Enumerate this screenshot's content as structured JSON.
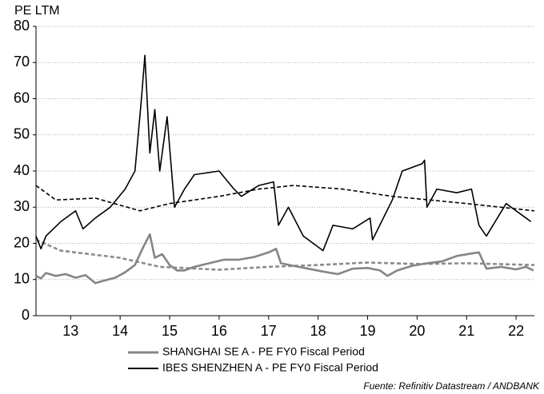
{
  "chart_data": {
    "type": "line",
    "y_label": "PE LTM",
    "source": "Fuente: Refinitiv Datastream / ANDBANK",
    "xlim": [
      2012.8,
      2022.87
    ],
    "xticks": [
      {
        "value": 2013.5,
        "label": "13"
      },
      {
        "value": 2014.5,
        "label": "14"
      },
      {
        "value": 2015.5,
        "label": "15"
      },
      {
        "value": 2016.5,
        "label": "16"
      },
      {
        "value": 2017.5,
        "label": "17"
      },
      {
        "value": 2018.5,
        "label": "18"
      },
      {
        "value": 2019.5,
        "label": "19"
      },
      {
        "value": 2020.5,
        "label": "20"
      },
      {
        "value": 2021.5,
        "label": "21"
      },
      {
        "value": 2022.5,
        "label": "22"
      }
    ],
    "ylim": [
      0,
      80
    ],
    "yticks": [
      0,
      10,
      20,
      30,
      40,
      50,
      60,
      70,
      80
    ],
    "grid": true,
    "series": [
      {
        "name": "SHANGHAI SE A - PE FY0 Fiscal Period",
        "color": "#858585",
        "dash": false,
        "x": [
          2012.8,
          2012.9,
          2013.0,
          2013.2,
          2013.4,
          2013.6,
          2013.8,
          2014.0,
          2014.2,
          2014.4,
          2014.6,
          2014.8,
          2014.95,
          2015.1,
          2015.2,
          2015.35,
          2015.5,
          2015.65,
          2015.8,
          2016.0,
          2016.3,
          2016.6,
          2016.9,
          2017.2,
          2017.5,
          2017.65,
          2017.75,
          2018.0,
          2018.3,
          2018.6,
          2018.9,
          2019.2,
          2019.5,
          2019.75,
          2019.9,
          2020.1,
          2020.4,
          2020.7,
          2021.0,
          2021.3,
          2021.6,
          2021.75,
          2021.9,
          2022.2,
          2022.5,
          2022.7,
          2022.85
        ],
        "values": [
          11,
          10.3,
          11.8,
          11,
          11.5,
          10.5,
          11.2,
          9,
          9.8,
          10.5,
          12,
          14,
          18.5,
          22.5,
          16,
          17,
          14,
          12.5,
          12.5,
          13.5,
          14.5,
          15.5,
          15.5,
          16.2,
          17.5,
          18.5,
          14.5,
          13.8,
          13,
          12.2,
          11.5,
          13,
          13.2,
          12.5,
          11,
          12.5,
          13.8,
          14.5,
          15,
          16.5,
          17.2,
          17.5,
          13,
          13.5,
          12.8,
          13.5,
          12.5
        ]
      },
      {
        "name": "IBES SHENZHEN A - PE FY0 Fiscal Period",
        "color": "#000000",
        "dash": false,
        "x": [
          2012.8,
          2012.9,
          2013.0,
          2013.3,
          2013.6,
          2013.75,
          2014.0,
          2014.3,
          2014.6,
          2014.8,
          2014.93,
          2015.0,
          2015.1,
          2015.2,
          2015.3,
          2015.45,
          2015.6,
          2015.8,
          2016.0,
          2016.5,
          2016.8,
          2016.95,
          2017.3,
          2017.6,
          2017.7,
          2017.9,
          2018.2,
          2018.6,
          2018.8,
          2019.2,
          2019.55,
          2019.6,
          2020.0,
          2020.2,
          2020.6,
          2020.65,
          2020.7,
          2020.9,
          2021.3,
          2021.6,
          2021.75,
          2021.9,
          2022.3,
          2022.6,
          2022.8
        ],
        "values": [
          22,
          18.5,
          22,
          26,
          29,
          24,
          27,
          30,
          35,
          40,
          60,
          72,
          45,
          57,
          40,
          55,
          30,
          35,
          39,
          40,
          35,
          33,
          36,
          37,
          25,
          30,
          22,
          18,
          25,
          24,
          27,
          21,
          32,
          40,
          42,
          43,
          30,
          35,
          34,
          35,
          25,
          22,
          31,
          28,
          26
        ]
      },
      {
        "color": "#000000",
        "dash": true,
        "x": [
          2012.8,
          2013.2,
          2014.0,
          2014.9,
          2015.5,
          2016.5,
          2017.3,
          2018.0,
          2019.0,
          2020.0,
          2021.5,
          2022.87
        ],
        "values": [
          36,
          32,
          32.5,
          29,
          31,
          33,
          35,
          36,
          35,
          33,
          31,
          29
        ]
      },
      {
        "color": "#8c8c8c",
        "dash": true,
        "x": [
          2012.8,
          2013.3,
          2014.5,
          2015.3,
          2016.5,
          2017.5,
          2018.5,
          2019.5,
          2020.5,
          2021.5,
          2022.87
        ],
        "values": [
          21,
          18,
          16,
          13.5,
          12.7,
          13.5,
          14,
          14.7,
          14.3,
          14.5,
          14
        ]
      }
    ]
  }
}
